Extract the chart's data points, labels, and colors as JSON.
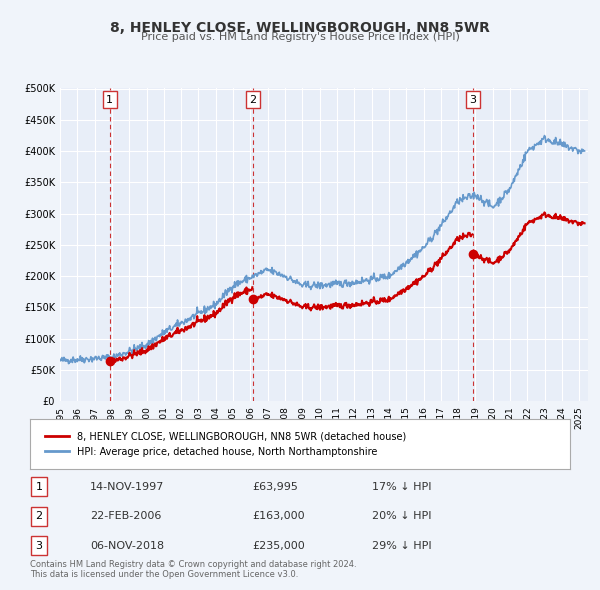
{
  "title": "8, HENLEY CLOSE, WELLINGBOROUGH, NN8 5WR",
  "subtitle": "Price paid vs. HM Land Registry's House Price Index (HPI)",
  "background_color": "#f0f4fa",
  "plot_bg_color": "#e8eef8",
  "hpi_color": "#6699cc",
  "price_color": "#cc0000",
  "ylim": [
    0,
    500000
  ],
  "yticks": [
    0,
    50000,
    100000,
    150000,
    200000,
    250000,
    300000,
    350000,
    400000,
    450000,
    500000
  ],
  "xlim_start": 1995.0,
  "xlim_end": 2025.5,
  "sales": [
    {
      "year": 1997.87,
      "price": 63995,
      "label": "1"
    },
    {
      "year": 2006.14,
      "price": 163000,
      "label": "2"
    },
    {
      "year": 2018.84,
      "price": 235000,
      "label": "3"
    }
  ],
  "sale_vlines": [
    1997.87,
    2006.14,
    2018.84
  ],
  "legend_labels": [
    "8, HENLEY CLOSE, WELLINGBOROUGH, NN8 5WR (detached house)",
    "HPI: Average price, detached house, North Northamptonshire"
  ],
  "table_rows": [
    {
      "num": "1",
      "date": "14-NOV-1997",
      "price": "£63,995",
      "hpi": "17% ↓ HPI"
    },
    {
      "num": "2",
      "date": "22-FEB-2006",
      "price": "£163,000",
      "hpi": "20% ↓ HPI"
    },
    {
      "num": "3",
      "date": "06-NOV-2018",
      "price": "£235,000",
      "hpi": "29% ↓ HPI"
    }
  ],
  "footnote": "Contains HM Land Registry data © Crown copyright and database right 2024.\nThis data is licensed under the Open Government Licence v3.0."
}
